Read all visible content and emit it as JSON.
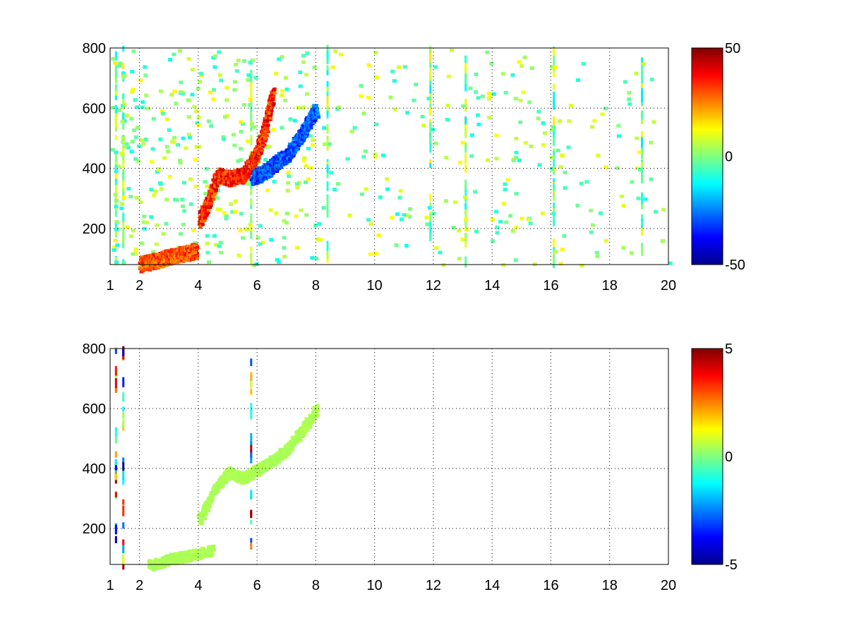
{
  "chart_data": [
    {
      "type": "heatmap",
      "title": "",
      "xlabel": "",
      "ylabel": "",
      "xlim": [
        1,
        20
      ],
      "ylim": [
        80,
        800
      ],
      "xticks": [
        1,
        2,
        4,
        6,
        8,
        10,
        12,
        14,
        16,
        18,
        20
      ],
      "xtick_labels": [
        "1",
        "2",
        "4",
        "6",
        "8",
        "10",
        "12",
        "14",
        "16",
        "18",
        "20"
      ],
      "yticks": [
        200,
        400,
        600,
        800
      ],
      "ytick_labels": [
        "200",
        "400",
        "600",
        "800"
      ],
      "grid": true,
      "colormap": "jet",
      "clim": [
        -50,
        50
      ],
      "colorbar_ticks": [
        -50,
        0,
        50
      ],
      "colorbar_labels": [
        "-50",
        "0",
        "50"
      ],
      "features": [
        {
          "name": "positive ridge",
          "x": [
            2.0,
            2.5,
            3.0,
            3.5,
            3.9
          ],
          "y": [
            85,
            95,
            110,
            120,
            130
          ],
          "value": 35
        },
        {
          "name": "positive ridge",
          "x": [
            4.0,
            4.3,
            4.6,
            5.0,
            5.5,
            5.9,
            6.2,
            6.5
          ],
          "y": [
            230,
            290,
            380,
            370,
            380,
            440,
            520,
            650
          ],
          "value": 40
        },
        {
          "name": "negative band",
          "x": [
            5.8,
            6.2,
            6.6,
            7.0,
            7.5,
            8.0
          ],
          "y": [
            370,
            390,
            420,
            450,
            520,
            600
          ],
          "value": -35
        }
      ],
      "vertical_streaks_x": [
        1.2,
        1.45,
        5.8,
        8.4,
        11.9,
        13.1,
        16.1,
        19.1
      ]
    },
    {
      "type": "heatmap",
      "title": "",
      "xlabel": "",
      "ylabel": "",
      "xlim": [
        1,
        20
      ],
      "ylim": [
        80,
        800
      ],
      "xticks": [
        1,
        2,
        4,
        6,
        8,
        10,
        12,
        14,
        16,
        18,
        20
      ],
      "xtick_labels": [
        "1",
        "2",
        "4",
        "6",
        "8",
        "10",
        "12",
        "14",
        "16",
        "18",
        "20"
      ],
      "yticks": [
        200,
        400,
        600,
        800
      ],
      "ytick_labels": [
        "200",
        "400",
        "600",
        "800"
      ],
      "grid": true,
      "colormap": "jet",
      "clim": [
        -5,
        5
      ],
      "colorbar_ticks": [
        -5,
        0,
        5
      ],
      "colorbar_labels": [
        "-5",
        "0",
        "5"
      ],
      "features": [
        {
          "name": "ridge",
          "x": [
            2.3,
            3.0,
            3.5,
            4.5
          ],
          "y": [
            80,
            100,
            110,
            130
          ],
          "value": 0.5
        },
        {
          "name": "ridge",
          "x": [
            4.0,
            4.5,
            5.0,
            5.5,
            6.0,
            6.5,
            7.0,
            7.5,
            8.0
          ],
          "y": [
            230,
            330,
            390,
            370,
            400,
            430,
            470,
            530,
            600
          ],
          "value": 0.5
        }
      ],
      "vertical_streaks_x": [
        1.2,
        1.45,
        5.8
      ]
    }
  ]
}
